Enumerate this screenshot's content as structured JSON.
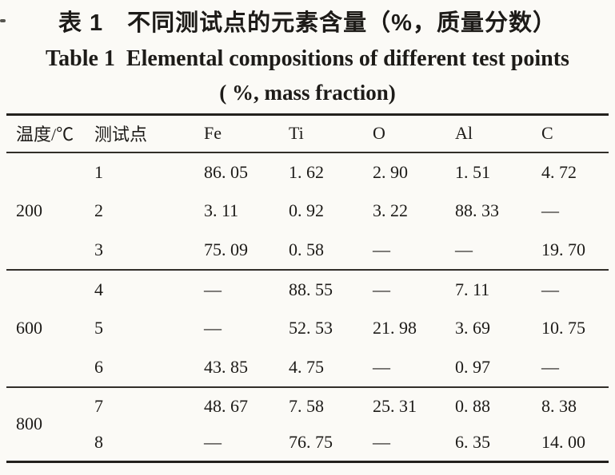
{
  "titles": {
    "zh": "表 1　不同测试点的元素含量（%，质量分数）",
    "en": "Table 1  Elemental compositions of different test points",
    "sub": "( %, mass fraction)"
  },
  "colors": {
    "background": "#fbfaf6",
    "text": "#1d1b18",
    "rule_heavy": "#23211d",
    "rule_light": "#312e29"
  },
  "table": {
    "headers": [
      "温度/℃",
      "测试点",
      "Fe",
      "Ti",
      "O",
      "Al",
      "C"
    ],
    "groups": [
      {
        "temp": "200",
        "rows": [
          {
            "point": "1",
            "values": [
              "86. 05",
              "1. 62",
              "2. 90",
              "1. 51",
              "4. 72"
            ]
          },
          {
            "point": "2",
            "values": [
              "3. 11",
              "0. 92",
              "3. 22",
              "88. 33",
              "—"
            ]
          },
          {
            "point": "3",
            "values": [
              "75. 09",
              "0. 58",
              "—",
              "—",
              "19. 70"
            ]
          }
        ]
      },
      {
        "temp": "600",
        "rows": [
          {
            "point": "4",
            "values": [
              "—",
              "88. 55",
              "—",
              "7. 11",
              "—"
            ]
          },
          {
            "point": "5",
            "values": [
              "—",
              "52. 53",
              "21. 98",
              "3. 69",
              "10. 75"
            ]
          },
          {
            "point": "6",
            "values": [
              "43. 85",
              "4. 75",
              "—",
              "0. 97",
              "—"
            ]
          }
        ]
      },
      {
        "temp": "800",
        "rows": [
          {
            "point": "7",
            "values": [
              "48. 67",
              "7. 58",
              "25. 31",
              "0. 88",
              "8. 38"
            ]
          },
          {
            "point": "8",
            "values": [
              "—",
              "76. 75",
              "—",
              "6. 35",
              "14. 00"
            ]
          }
        ]
      }
    ]
  }
}
